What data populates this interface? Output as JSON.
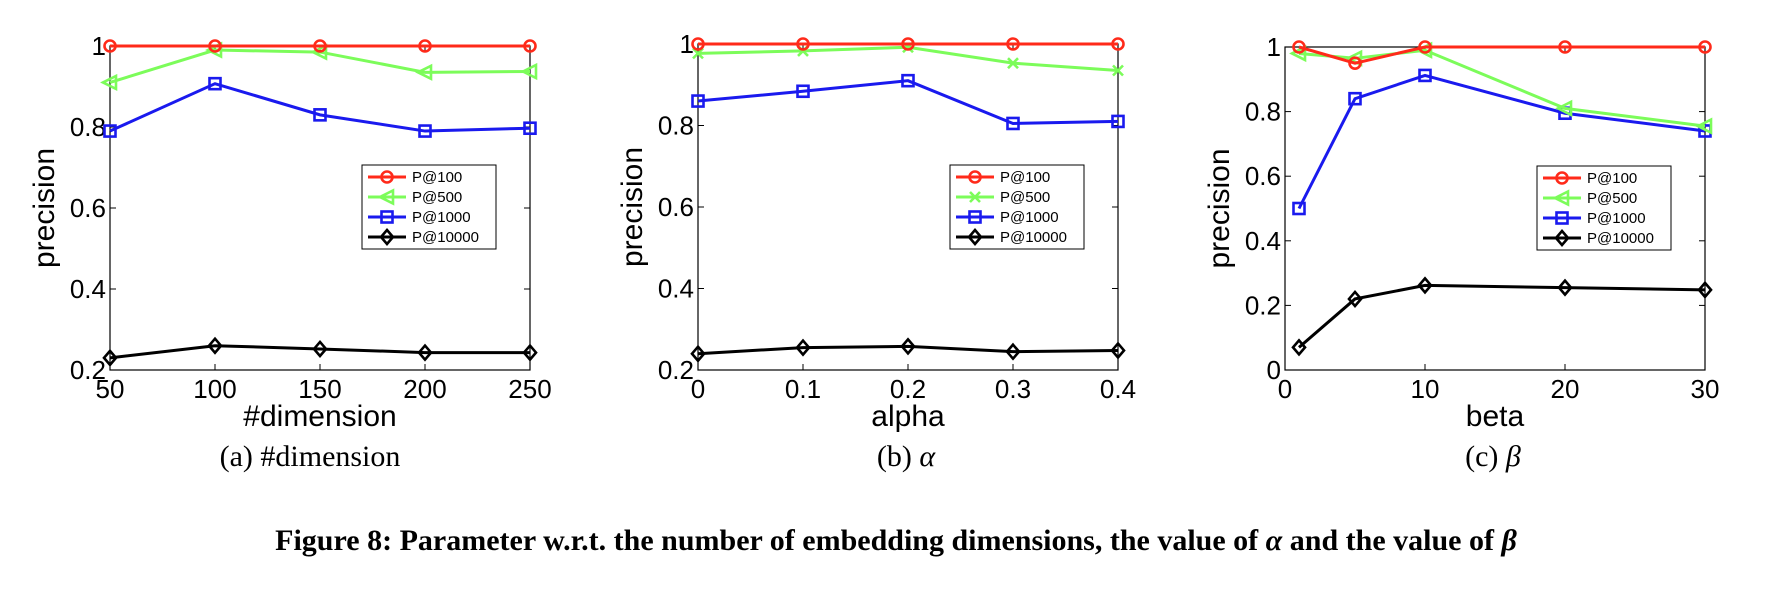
{
  "figure": {
    "caption_label": "Figure 8:",
    "caption_text_1": "Parameter w.r.t. the number of embedding dimensions, the value of",
    "caption_sym_1": "α",
    "caption_text_2": "and the value of",
    "caption_sym_2": "β"
  },
  "subcaptions": [
    {
      "label": "(a)",
      "text": "#dimension",
      "italic": false
    },
    {
      "label": "(b)",
      "text": "α",
      "italic": true
    },
    {
      "label": "(c)",
      "text": "β",
      "italic": true
    }
  ],
  "colors": {
    "P@100": "#ff2a1a",
    "P@500": "#7cfc5a",
    "P@1000": "#1a1aee",
    "P@10000": "#000000"
  },
  "markers": {
    "P@100": "circle",
    "P@500": "triangle-left",
    "P@1000": "square",
    "P@10000": "diamond"
  },
  "chart_data": [
    {
      "type": "line",
      "xlabel": "#dimension",
      "ylabel": "precision",
      "x": [
        50,
        100,
        150,
        200,
        250
      ],
      "xlim": [
        50,
        250
      ],
      "ylim": [
        0.2,
        1
      ],
      "xticks": [
        "50",
        "100",
        "150",
        "200",
        "250"
      ],
      "yticks": [
        0.2,
        0.4,
        0.6,
        0.8,
        1
      ],
      "ytick_labels": [
        "0.2",
        "0.4",
        "0.6",
        "0.8",
        "1"
      ],
      "legend_position": "center-right",
      "series": [
        {
          "name": "P@100",
          "marker": "circle",
          "values": [
            1.0,
            1.0,
            1.0,
            1.0,
            1.0
          ]
        },
        {
          "name": "P@500",
          "marker": "triangle-left",
          "values": [
            0.91,
            0.99,
            0.985,
            0.935,
            0.937
          ]
        },
        {
          "name": "P@1000",
          "marker": "square",
          "values": [
            0.79,
            0.907,
            0.83,
            0.79,
            0.797
          ]
        },
        {
          "name": "P@10000",
          "marker": "diamond",
          "values": [
            0.23,
            0.26,
            0.252,
            0.243,
            0.243
          ]
        }
      ]
    },
    {
      "type": "line",
      "xlabel": "alpha",
      "ylabel": "precision",
      "x": [
        0,
        0.1,
        0.2,
        0.3,
        0.4
      ],
      "xlim": [
        0,
        0.4
      ],
      "ylim": [
        0.2,
        1
      ],
      "xticks": [
        "0",
        "0.1",
        "0.2",
        "0.3",
        "0.4"
      ],
      "yticks": [
        0.2,
        0.4,
        0.6,
        0.8,
        1
      ],
      "ytick_labels": [
        "0.2",
        "0.4",
        "0.6",
        "0.8",
        "1"
      ],
      "legend_position": "center-right",
      "series": [
        {
          "name": "P@100",
          "marker": "circle",
          "values": [
            1.0,
            1.0,
            1.0,
            1.0,
            1.0
          ]
        },
        {
          "name": "P@500",
          "marker": "x",
          "values": [
            0.977,
            0.983,
            0.992,
            0.953,
            0.935
          ]
        },
        {
          "name": "P@1000",
          "marker": "square",
          "values": [
            0.86,
            0.884,
            0.91,
            0.805,
            0.81
          ]
        },
        {
          "name": "P@10000",
          "marker": "diamond",
          "values": [
            0.24,
            0.255,
            0.258,
            0.245,
            0.248
          ]
        }
      ]
    },
    {
      "type": "line",
      "xlabel": "beta",
      "ylabel": "precision",
      "x": [
        1,
        5,
        10,
        20,
        30
      ],
      "xlim": [
        0,
        30
      ],
      "ylim": [
        0,
        1
      ],
      "xticks": [
        "0",
        "10",
        "20",
        "30"
      ],
      "xtick_values": [
        0,
        10,
        20,
        30
      ],
      "yticks": [
        0,
        0.2,
        0.4,
        0.6,
        0.8,
        1
      ],
      "ytick_labels": [
        "0",
        "0.2",
        "0.4",
        "0.6",
        "0.8",
        "1"
      ],
      "legend_position": "center-right",
      "series": [
        {
          "name": "P@100",
          "marker": "circle",
          "values": [
            1.0,
            0.95,
            1.0,
            1.0,
            1.0
          ]
        },
        {
          "name": "P@500",
          "marker": "triangle-left",
          "values": [
            0.98,
            0.965,
            0.99,
            0.81,
            0.755
          ]
        },
        {
          "name": "P@1000",
          "marker": "square",
          "values": [
            0.5,
            0.84,
            0.912,
            0.795,
            0.74
          ]
        },
        {
          "name": "P@10000",
          "marker": "diamond",
          "values": [
            0.07,
            0.22,
            0.262,
            0.255,
            0.248
          ]
        }
      ]
    }
  ]
}
